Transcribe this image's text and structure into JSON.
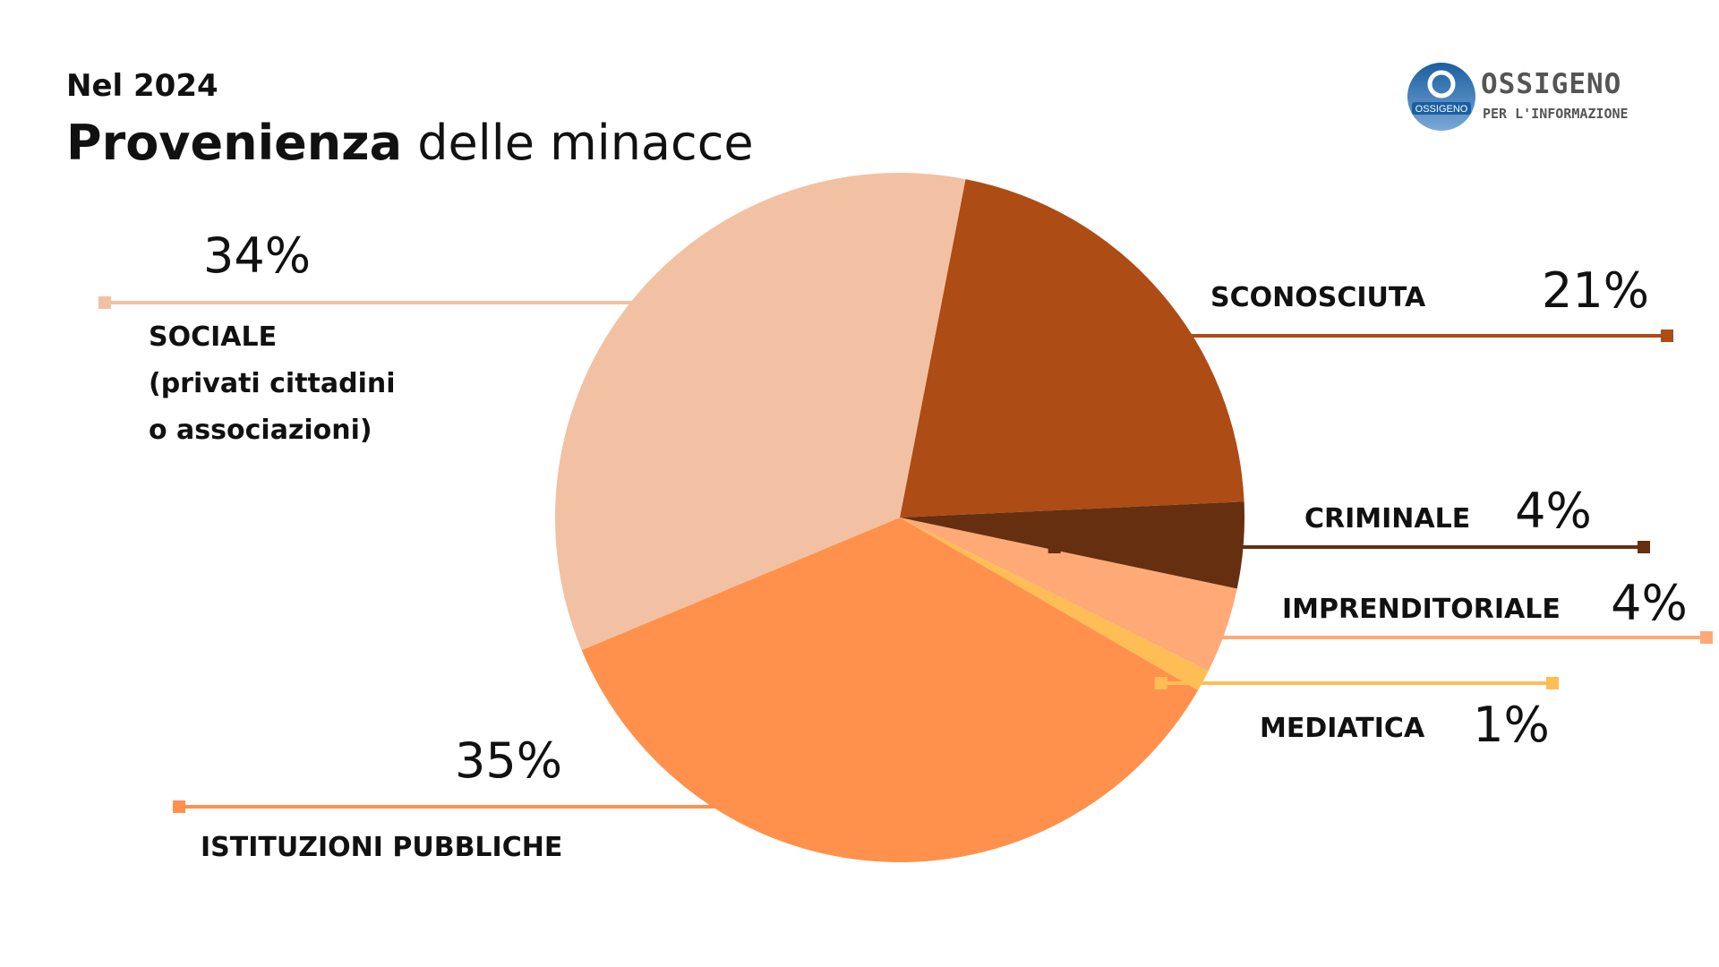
{
  "header": {
    "subtitle": "Nel 2024",
    "title_bold": "Provenienza",
    "title_rest": " delle minacce"
  },
  "logo": {
    "name": "OSSIGENO",
    "tagline": "PER L'INFORMAZIONE",
    "badge": "OSSIGENO",
    "colors": {
      "circle_top": "#1b5fa0",
      "circle_bottom": "#7aa8d8"
    }
  },
  "chart_data": {
    "type": "pie",
    "title": "Provenienza delle minacce",
    "legend": "none",
    "slices": [
      {
        "key": "sconosciuta",
        "label": "SCONOSCIUTA",
        "value": 21,
        "display": "21%",
        "color": "#ad4c14"
      },
      {
        "key": "criminale",
        "label": "CRIMINALE",
        "value": 4,
        "display": "4%",
        "color": "#652f10"
      },
      {
        "key": "imprenditoriale",
        "label": "IMPRENDITORIALE",
        "value": 4,
        "display": "4%",
        "color": "#ffa977"
      },
      {
        "key": "mediatica",
        "label": "MEDIATICA",
        "value": 1,
        "display": "1%",
        "color": "#ffbd55"
      },
      {
        "key": "istituzioni",
        "label": "ISTITUZIONI PUBBLICHE",
        "value": 35,
        "display": "35%",
        "color": "#ff914c"
      },
      {
        "key": "sociale",
        "label": "SOCIALE (privati cittadini o associazioni)",
        "label_lines": [
          "SOCIALE",
          "(privati cittadini",
          "o associazioni)"
        ],
        "value": 34,
        "display": "34%",
        "color": "#f2c1a3"
      }
    ]
  }
}
